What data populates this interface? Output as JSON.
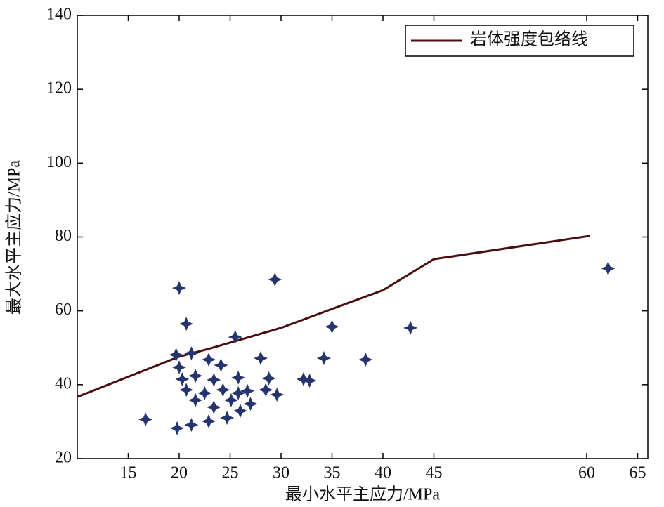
{
  "chart_data": {
    "type": "scatter",
    "xlabel": "最小水平主应力/MPa",
    "ylabel": "最大水平主应力/MPa",
    "xlim": [
      10,
      66
    ],
    "xticks": [
      15,
      20,
      25,
      30,
      35,
      40,
      45,
      60,
      65
    ],
    "ylim": [
      20,
      140
    ],
    "yticks": [
      20,
      40,
      60,
      80,
      100,
      120,
      140
    ],
    "legend": "upper right",
    "series": [
      {
        "name": "岩体强度包络线",
        "type": "line",
        "color": "#4a0d0d",
        "x": [
          10,
          20,
          22.9,
          30,
          40,
          45,
          60.3
        ],
        "values": [
          36.7,
          47.6,
          49.7,
          55.4,
          65.6,
          74.0,
          80.3
        ]
      },
      {
        "type": "scatter",
        "color": "#24346e",
        "x": [
          16.7,
          20,
          20.7,
          19.7,
          21.2,
          20,
          22.9,
          24.1,
          25.5,
          29.4,
          35,
          28.0,
          34.2,
          38.3,
          42.7,
          62.1,
          28.8,
          32.2,
          32.8,
          29.6,
          25.8,
          28.5,
          26.7,
          23.4,
          21.6,
          19.8,
          21.2,
          22.9,
          24.7,
          26.0,
          27.0,
          25.1,
          23.4,
          21.6,
          20.7,
          20.3,
          22.5,
          24.3,
          25.8
        ],
        "values": [
          30.6,
          66.2,
          56.5,
          48.1,
          48.5,
          44.7,
          46.8,
          45.3,
          52.9,
          68.5,
          55.7,
          47.2,
          47.2,
          46.8,
          55.4,
          71.5,
          41.7,
          41.5,
          41.1,
          37.3,
          41.9,
          38.6,
          38.3,
          41.3,
          42.4,
          28.2,
          29.1,
          30.1,
          31.0,
          32.9,
          34.8,
          35.8,
          33.9,
          35.8,
          38.6,
          41.5,
          37.7,
          38.6,
          37.7
        ]
      }
    ]
  }
}
